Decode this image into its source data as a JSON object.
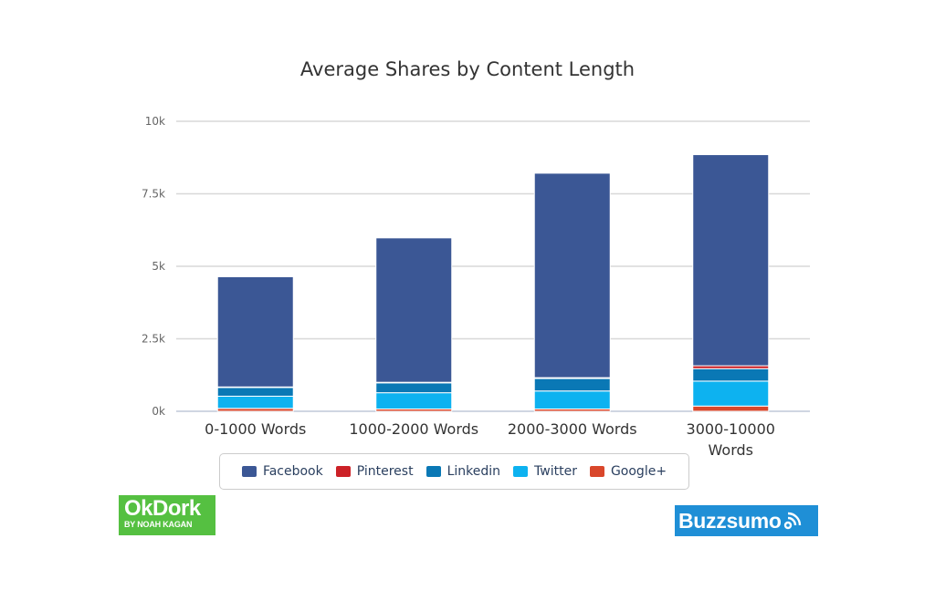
{
  "chart_data": {
    "type": "bar",
    "stacked": true,
    "title": "Average Shares by Content Length",
    "xlabel": "",
    "ylabel": "",
    "ylim": [
      0,
      10000
    ],
    "y_ticks": [
      0,
      2500,
      5000,
      7500,
      10000
    ],
    "y_tick_labels": [
      "0k",
      "2.5k",
      "5k",
      "7.5k",
      "10k"
    ],
    "categories": [
      [
        "0-1000 Words"
      ],
      [
        "1000-2000 Words"
      ],
      [
        "2000-3000 Words"
      ],
      [
        "3000-10000",
        "Words"
      ]
    ],
    "series": [
      {
        "name": "Google+",
        "color": "#d9472b",
        "values": [
          100,
          80,
          80,
          180
        ]
      },
      {
        "name": "Twitter",
        "color": "#0db2f0",
        "values": [
          420,
          560,
          620,
          860
        ]
      },
      {
        "name": "Linkedin",
        "color": "#0a78b5",
        "values": [
          300,
          340,
          430,
          430
        ]
      },
      {
        "name": "Pinterest",
        "color": "#cc2127",
        "values": [
          20,
          20,
          30,
          100
        ]
      },
      {
        "name": "Facebook",
        "color": "#3b5795",
        "values": [
          3800,
          4980,
          7050,
          7280
        ]
      }
    ],
    "legend_order": [
      "Facebook",
      "Pinterest",
      "Linkedin",
      "Twitter",
      "Google+"
    ],
    "legend_position": "bottom",
    "grid": true
  },
  "logos": {
    "okdork": {
      "name": "OkDork",
      "tagline": "BY NOAH KAGAN"
    },
    "buzzsumo": {
      "name": "Buzzsumo"
    }
  }
}
